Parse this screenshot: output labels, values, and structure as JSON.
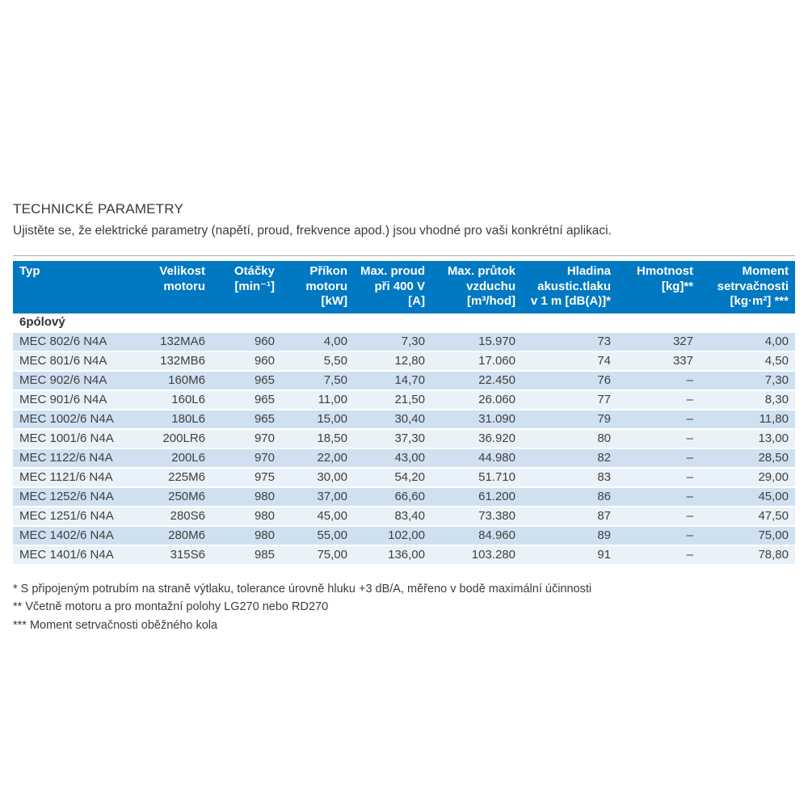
{
  "page": {
    "title": "TECHNICKÉ PARAMETRY",
    "subtitle": "Ujistěte se, že elektrické parametry (napětí, proud, frekvence apod.) jsou vhodné pro vaši konkrétní aplikaci."
  },
  "colors": {
    "header_blue": "#0079c2",
    "row_dark": "#cfe1f1",
    "row_light": "#e9f1f9"
  },
  "table": {
    "columns": [
      "Typ",
      "Velikost\nmotoru",
      "Otáčky\n[min⁻¹]",
      "Příkon\nmotoru\n[kW]",
      "Max. proud\npři 400 V\n[A]",
      "Max. průtok\nvzduchu\n[m³/hod]",
      "Hladina\nakustic.tlaku\nv 1 m [dB(A)]*",
      "Hmotnost\n[kg]**",
      "Moment\nsetrvačnosti\n[kg·m²] ***"
    ],
    "section_label": "6pólový",
    "rows": [
      [
        "MEC 802/6 N4A",
        "132MA6",
        "960",
        "4,00",
        "7,30",
        "15.970",
        "73",
        "327",
        "4,00"
      ],
      [
        "MEC 801/6 N4A",
        "132MB6",
        "960",
        "5,50",
        "12,80",
        "17.060",
        "74",
        "337",
        "4,50"
      ],
      [
        "MEC 902/6 N4A",
        "160M6",
        "965",
        "7,50",
        "14,70",
        "22.450",
        "76",
        "–",
        "7,30"
      ],
      [
        "MEC 901/6 N4A",
        "160L6",
        "965",
        "11,00",
        "21,50",
        "26.060",
        "77",
        "–",
        "8,30"
      ],
      [
        "MEC 1002/6 N4A",
        "180L6",
        "965",
        "15,00",
        "30,40",
        "31.090",
        "79",
        "–",
        "11,80"
      ],
      [
        "MEC 1001/6 N4A",
        "200LR6",
        "970",
        "18,50",
        "37,30",
        "36.920",
        "80",
        "–",
        "13,00"
      ],
      [
        "MEC 1122/6 N4A",
        "200L6",
        "970",
        "22,00",
        "43,00",
        "44.980",
        "82",
        "–",
        "28,50"
      ],
      [
        "MEC 1121/6 N4A",
        "225M6",
        "975",
        "30,00",
        "54,20",
        "51.710",
        "83",
        "–",
        "29,00"
      ],
      [
        "MEC 1252/6 N4A",
        "250M6",
        "980",
        "37,00",
        "66,60",
        "61.200",
        "86",
        "–",
        "45,00"
      ],
      [
        "MEC 1251/6 N4A",
        "280S6",
        "980",
        "45,00",
        "83,40",
        "73.380",
        "87",
        "–",
        "47,50"
      ],
      [
        "MEC 1402/6 N4A",
        "280M6",
        "980",
        "55,00",
        "102,00",
        "84.960",
        "89",
        "–",
        "75,00"
      ],
      [
        "MEC 1401/6 N4A",
        "315S6",
        "985",
        "75,00",
        "136,00",
        "103.280",
        "91",
        "–",
        "78,80"
      ]
    ]
  },
  "footnotes": [
    "* S připojeným potrubím na straně výtlaku, tolerance úrovně hluku +3 dB/A, měřeno v bodě maximální účinnosti",
    "** Včetně motoru a pro montažní polohy LG270 nebo RD270",
    "*** Moment setrvačnosti oběžného kola"
  ]
}
